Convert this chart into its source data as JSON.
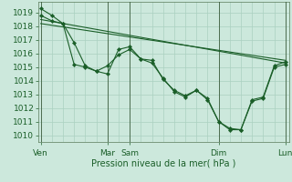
{
  "xlabel": "Pression niveau de la mer( hPa )",
  "ylim": [
    1009.5,
    1019.8
  ],
  "xlim": [
    -3,
    268
  ],
  "yticks": [
    1010,
    1011,
    1012,
    1013,
    1014,
    1015,
    1016,
    1017,
    1018,
    1019
  ],
  "xtick_positions": [
    0,
    72,
    96,
    192,
    264
  ],
  "xtick_labels": [
    "Ven",
    "Mar",
    "Sam",
    "Dim",
    "Lun"
  ],
  "bg_color": "#cce8dc",
  "grid_color": "#aad0c0",
  "line_color": "#1a5e28",
  "vline_color": "#3a5a3a",
  "vline_positions": [
    0,
    72,
    96,
    192,
    264
  ],
  "series_main": [
    {
      "x": [
        0,
        12,
        24,
        36,
        48,
        60,
        72,
        84,
        96,
        108,
        120,
        132,
        144,
        156,
        168,
        180,
        192,
        204,
        216,
        228,
        240,
        252,
        264
      ],
      "y": [
        1019.3,
        1018.8,
        1018.2,
        1015.2,
        1015.0,
        1014.7,
        1014.5,
        1016.3,
        1016.5,
        1015.6,
        1015.5,
        1014.1,
        1013.3,
        1012.9,
        1013.3,
        1012.6,
        1011.0,
        1010.4,
        1010.4,
        1012.6,
        1012.8,
        1015.1,
        1015.4
      ]
    },
    {
      "x": [
        0,
        12,
        24,
        36,
        48,
        60,
        72,
        84,
        96,
        108,
        120,
        132,
        144,
        156,
        168,
        180,
        192,
        204,
        216,
        228,
        240,
        252,
        264
      ],
      "y": [
        1018.8,
        1018.4,
        1018.2,
        1016.8,
        1015.1,
        1014.7,
        1015.1,
        1015.9,
        1016.3,
        1015.6,
        1015.3,
        1014.2,
        1013.2,
        1012.8,
        1013.3,
        1012.7,
        1011.0,
        1010.5,
        1010.4,
        1012.5,
        1012.7,
        1015.0,
        1015.2
      ]
    }
  ],
  "series_smooth": [
    {
      "x": [
        0,
        264
      ],
      "y": [
        1018.5,
        1015.3
      ]
    },
    {
      "x": [
        0,
        264
      ],
      "y": [
        1018.2,
        1015.5
      ]
    }
  ]
}
